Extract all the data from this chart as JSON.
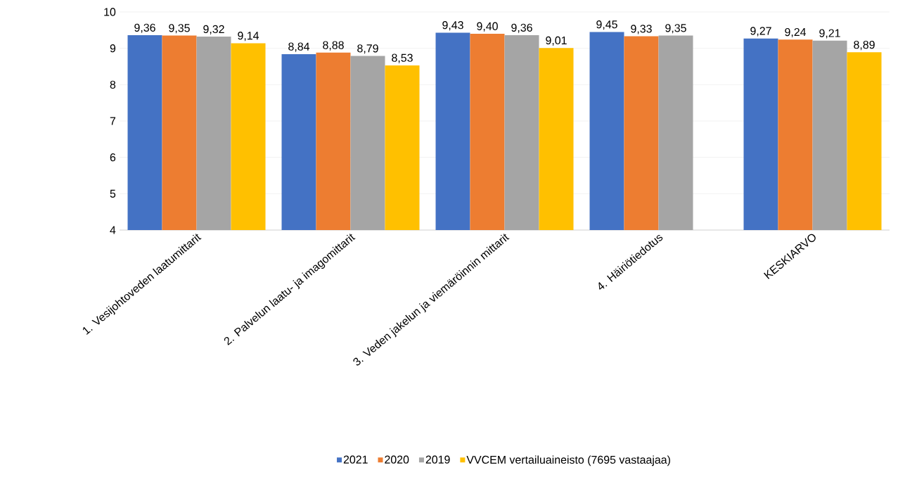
{
  "chart_data": {
    "type": "bar",
    "categories": [
      "1. Vesijohtoveden laatumittarit",
      "2. Palvelun laatu- ja imagomittarit",
      "3. Veden jakelun ja viemäröinnin mittarit",
      "4. Häiriötiedotus",
      "KESKIARVO"
    ],
    "series": [
      {
        "name": "2021",
        "color": "#4472c4",
        "values": [
          9.36,
          8.84,
          9.43,
          9.45,
          9.27
        ],
        "value_labels": [
          "9,36",
          "8,84",
          "9,43",
          "9,45",
          "9,27"
        ]
      },
      {
        "name": "2020",
        "color": "#ed7d31",
        "values": [
          9.35,
          8.88,
          9.4,
          9.33,
          9.24
        ],
        "value_labels": [
          "9,35",
          "8,88",
          "9,40",
          "9,33",
          "9,24"
        ]
      },
      {
        "name": "2019",
        "color": "#a5a5a5",
        "values": [
          9.32,
          8.79,
          9.36,
          9.35,
          9.21
        ],
        "value_labels": [
          "9,32",
          "8,79",
          "9,36",
          "9,35",
          "9,21"
        ]
      },
      {
        "name": "VVCEM vertailuaineisto (7695 vastaajaa)",
        "color": "#ffc000",
        "values": [
          9.14,
          8.53,
          9.01,
          null,
          8.89
        ],
        "value_labels": [
          "9,14",
          "8,53",
          "9,01",
          null,
          "8,89"
        ]
      }
    ],
    "ylim": [
      4,
      10
    ],
    "yticks": [
      4,
      5,
      6,
      7,
      8,
      9,
      10
    ],
    "grid": "y",
    "legend": "bottom"
  }
}
